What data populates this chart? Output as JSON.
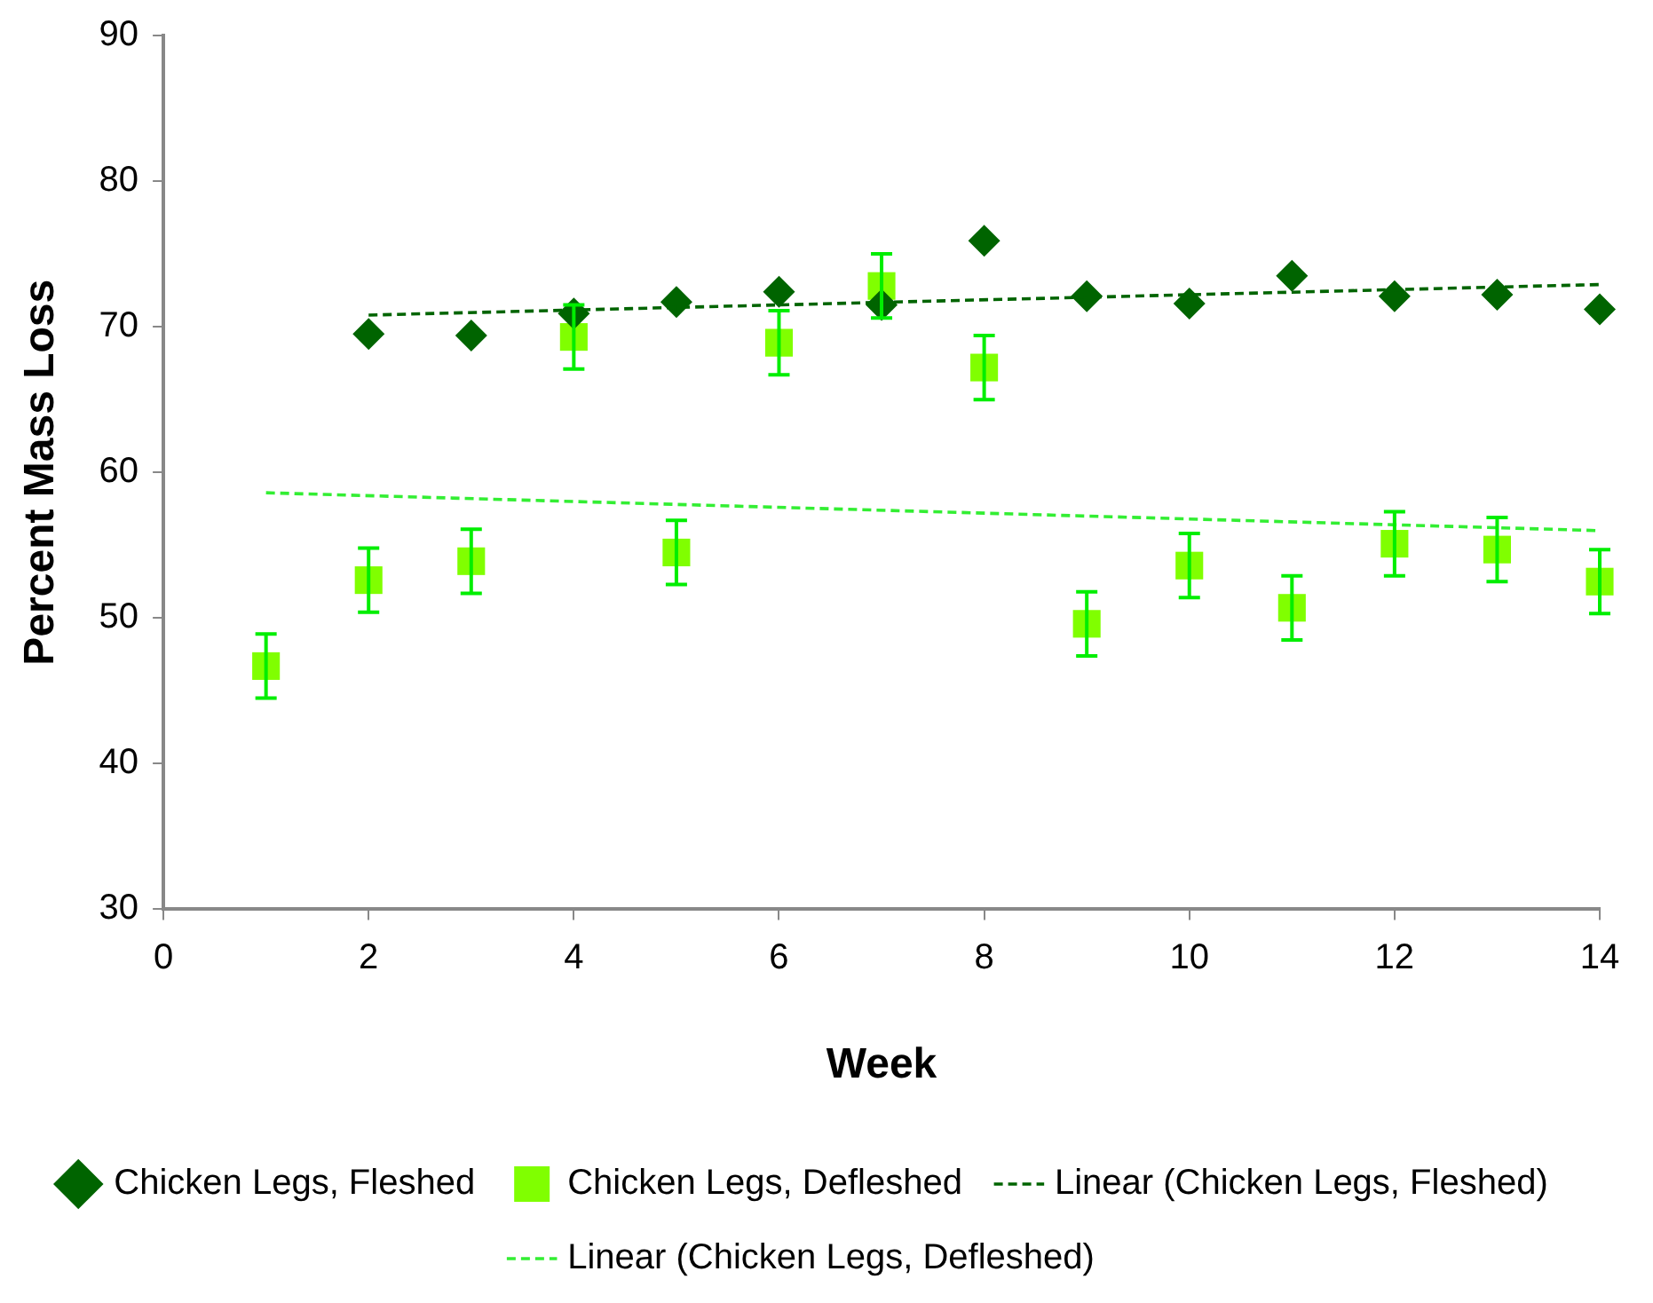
{
  "chart_data": {
    "type": "scatter",
    "xlabel": "Week",
    "ylabel": "Percent Mass Loss",
    "xlim": [
      0,
      14
    ],
    "xticks": [
      0,
      2,
      4,
      6,
      8,
      10,
      12,
      14
    ],
    "ylim": [
      30,
      90
    ],
    "yticks": [
      30,
      40,
      50,
      60,
      70,
      80,
      90
    ],
    "grid": false,
    "legend": "bottom",
    "series": [
      {
        "name": "Chicken Legs, Fleshed",
        "marker": "diamond",
        "color": "#006400",
        "x": [
          2,
          3,
          4,
          5,
          6,
          7,
          8,
          9,
          10,
          11,
          12,
          13,
          14
        ],
        "values": [
          69.5,
          69.4,
          70.9,
          71.7,
          72.4,
          71.5,
          75.9,
          72.1,
          71.6,
          73.5,
          72.1,
          72.2,
          71.2
        ]
      },
      {
        "name": "Chicken Legs, Defleshed",
        "marker": "square",
        "color": "#80ff00",
        "x": [
          1,
          2,
          3,
          4,
          5,
          6,
          7,
          8,
          9,
          10,
          11,
          12,
          13,
          14
        ],
        "values": [
          46.7,
          52.6,
          53.9,
          69.3,
          54.5,
          68.9,
          72.8,
          67.2,
          49.6,
          53.6,
          50.7,
          55.1,
          54.7,
          52.5
        ],
        "errors": [
          2.2,
          2.2,
          2.2,
          2.2,
          2.2,
          2.2,
          2.2,
          2.2,
          2.2,
          2.2,
          2.2,
          2.2,
          2.2,
          2.2
        ]
      },
      {
        "name": "Linear (Chicken Legs, Fleshed)",
        "type": "line",
        "marker": "none",
        "line_style": "dashed",
        "color": "#006400",
        "x": [
          2,
          14
        ],
        "values": [
          70.8,
          72.9
        ]
      },
      {
        "name": "Linear (Chicken Legs, Defleshed)",
        "type": "line",
        "marker": "none",
        "line_style": "dashed",
        "color": "#33ee33",
        "x": [
          1,
          14
        ],
        "values": [
          58.6,
          56.0
        ]
      }
    ]
  }
}
